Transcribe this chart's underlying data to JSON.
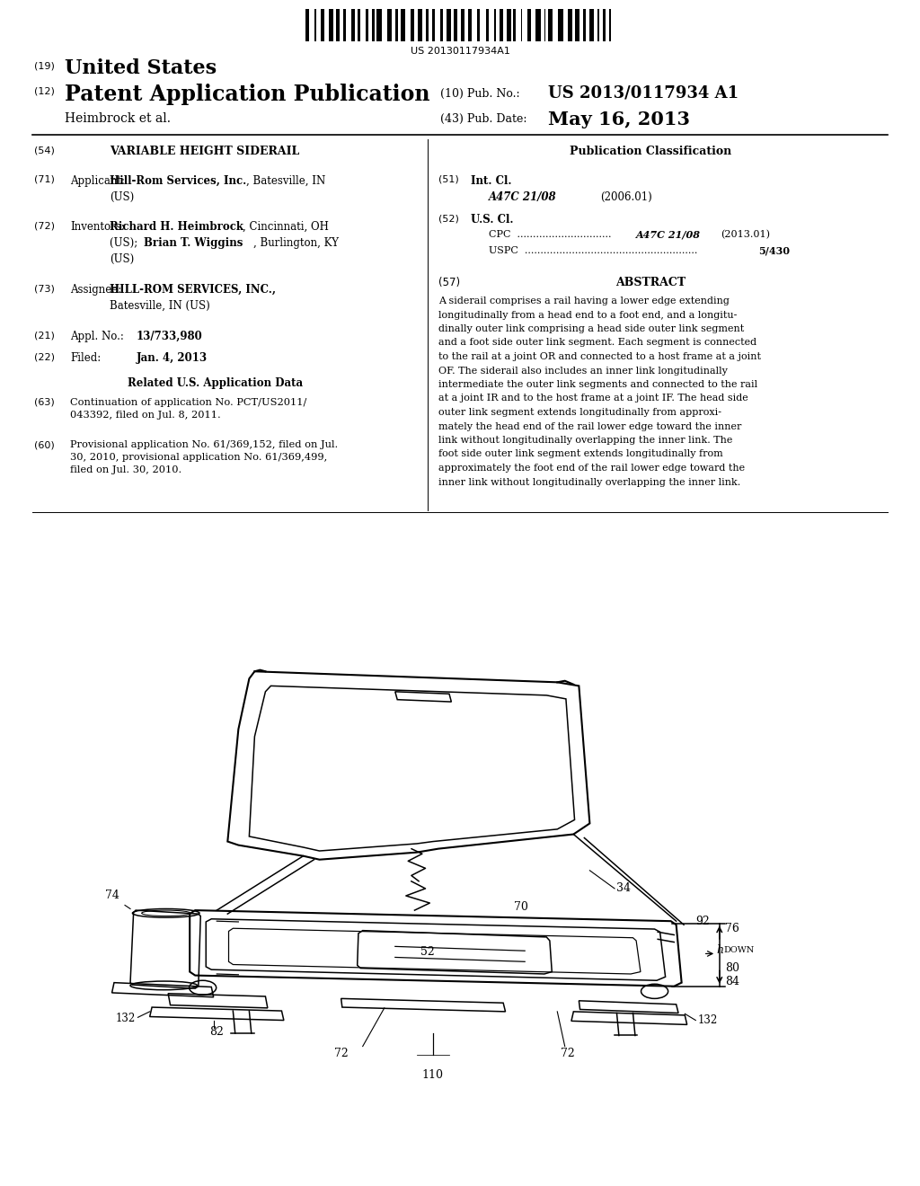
{
  "background_color": "#ffffff",
  "page_width": 10.24,
  "page_height": 13.2,
  "barcode_text": "US 20130117934A1",
  "header": {
    "country_label": "(19)",
    "country": "United States",
    "type_label": "(12)",
    "type": "Patent Application Publication",
    "author": "Heimbrock et al.",
    "pub_no_label": "(10) Pub. No.:",
    "pub_no": "US 2013/0117934 A1",
    "pub_date_label": "(43) Pub. Date:",
    "pub_date": "May 16, 2013"
  },
  "left_col": {
    "title_num": "(54)",
    "title": "VARIABLE HEIGHT SIDERAIL",
    "applicant_num": "(71)",
    "applicant_label": "Applicant:",
    "inventors_num": "(72)",
    "inventors_label": "Inventors:",
    "assignee_num": "(73)",
    "assignee_label": "Assignee:",
    "appl_num_label": "(21)",
    "filed_num": "(22)",
    "filed_label": "Filed:",
    "filed_date": "Jan. 4, 2013",
    "related_title": "Related U.S. Application Data",
    "cont_num": "(63)",
    "cont_text": "Continuation of application No. PCT/US2011/\n043392, filed on Jul. 8, 2011.",
    "prov_num": "(60)",
    "prov_text": "Provisional application No. 61/369,152, filed on Jul.\n30, 2010, provisional application No. 61/369,499,\nfiled on Jul. 30, 2010."
  },
  "right_col": {
    "pub_class_title": "Publication Classification",
    "int_cl_num": "(51)",
    "int_cl_label": "Int. Cl.",
    "int_cl_code": "A47C 21/08",
    "int_cl_year": "(2006.01)",
    "us_cl_num": "(52)",
    "us_cl_label": "U.S. Cl.",
    "abstract_num": "(57)",
    "abstract_title": "ABSTRACT",
    "abstract_text": "A siderail comprises a rail having a lower edge extending longitudinally from a head end to a foot end, and a longitudi-nally outer link comprising a head side outer link segment and a foot side outer link segment. Each segment is connected to the rail at a joint OR and connected to a host frame at a joint OF. The siderail also includes an inner link longitudinally intermediate the outer link segments and connected to the rail at a joint IR and to the host frame at a joint IF. The head side outer link segment extends longitudinally from approxi-mately the head end of the rail lower edge toward the inner link without longitudinally overlapping the inner link. The foot side outer link segment extends longitudinally from approximately the foot end of the rail lower edge toward the inner link without longitudinally overlapping the inner link."
  }
}
